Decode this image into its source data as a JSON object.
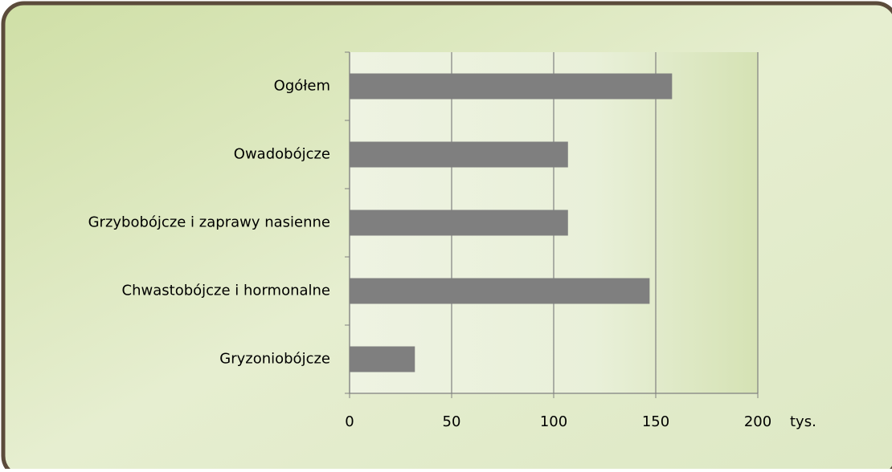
{
  "chart_data": {
    "type": "hbar",
    "categories": [
      "Ogółem",
      "Owadobójcze",
      "Grzybobójcze i zaprawy nasienne",
      "Chwastobójcze i hormonalne",
      "Gryzoniobójcze"
    ],
    "values": [
      158,
      107,
      107,
      147,
      32
    ],
    "color": "#7f7f7f",
    "xlim": [
      0,
      200
    ],
    "xticks": [
      0,
      50,
      100,
      150,
      200
    ],
    "x_unit": "tys.",
    "grid": true
  }
}
